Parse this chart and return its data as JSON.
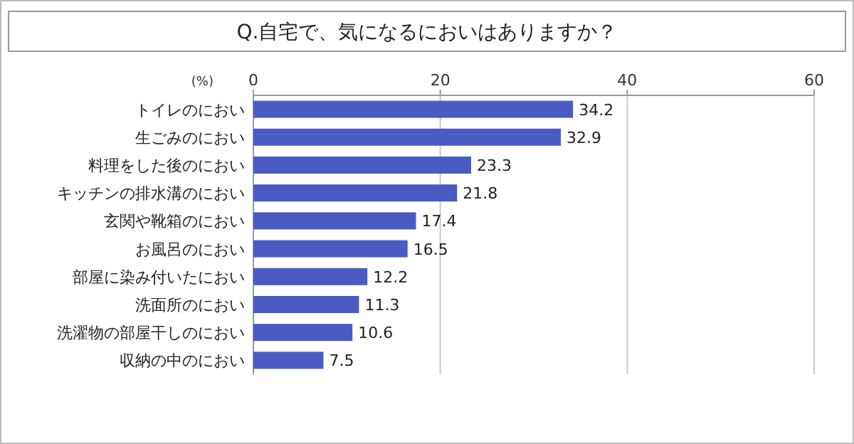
{
  "chart_data": {
    "type": "bar",
    "orientation": "horizontal",
    "title": "Q.自宅で、気になるにおいはありますか？",
    "xlabel": "(%)",
    "categories": [
      "トイレのにおい",
      "生ごみのにおい",
      "料理をした後のにおい",
      "キッチンの排水溝のにおい",
      "玄関や靴箱のにおい",
      "お風呂のにおい",
      "部屋に染み付いたにおい",
      "洗面所のにおい",
      "洗濯物の部屋干しのにおい",
      "収納の中のにおい"
    ],
    "values": [
      34.2,
      32.9,
      23.3,
      21.8,
      17.4,
      16.5,
      12.2,
      11.3,
      10.6,
      7.5
    ],
    "color": "#4a5bc4",
    "xlim": [
      0,
      60
    ],
    "xticks": [
      0,
      20,
      40,
      60
    ],
    "grid": "x",
    "data_labels": true
  }
}
